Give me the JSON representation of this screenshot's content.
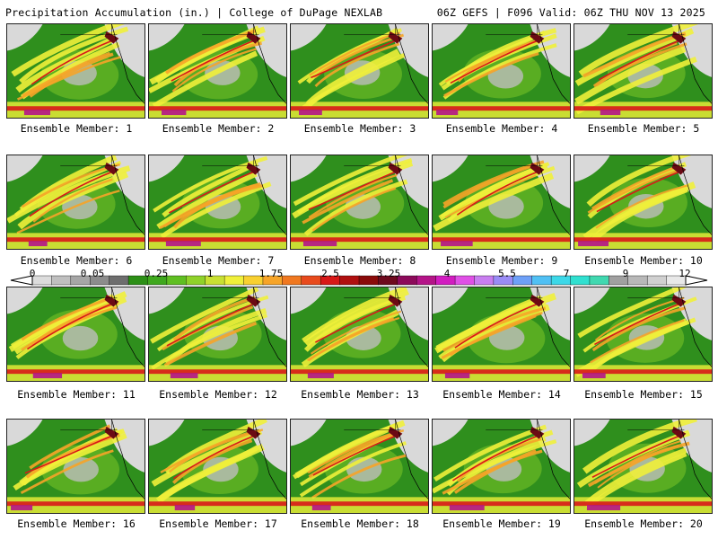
{
  "header": {
    "left_title": "Precipitation Accumulation (in.) | College of DuPage NEXLAB",
    "right_title": "06Z GEFS | F096 Valid: 06Z THU NOV 13 2025"
  },
  "panels": [
    {
      "label": "Ensemble Member: 1"
    },
    {
      "label": "Ensemble Member: 2"
    },
    {
      "label": "Ensemble Member: 3"
    },
    {
      "label": "Ensemble Member: 4"
    },
    {
      "label": "Ensemble Member: 5"
    },
    {
      "label": "Ensemble Member: 6"
    },
    {
      "label": "Ensemble Member: 7"
    },
    {
      "label": "Ensemble Member: 8"
    },
    {
      "label": "Ensemble Member: 9"
    },
    {
      "label": "Ensemble Member: 10"
    },
    {
      "label": "Ensemble Member: 11"
    },
    {
      "label": "Ensemble Member: 12"
    },
    {
      "label": "Ensemble Member: 13"
    },
    {
      "label": "Ensemble Member: 14"
    },
    {
      "label": "Ensemble Member: 15"
    },
    {
      "label": "Ensemble Member: 16"
    },
    {
      "label": "Ensemble Member: 17"
    },
    {
      "label": "Ensemble Member: 18"
    },
    {
      "label": "Ensemble Member: 19"
    },
    {
      "label": "Ensemble Member: 20"
    }
  ],
  "colorbar": {
    "tick_labels": [
      "0",
      "0.05",
      "0.25",
      "1",
      "1.75",
      "2.5",
      "3.25",
      "4",
      "5.5",
      "7",
      "9",
      "12"
    ],
    "colors": [
      "#dcdcdc",
      "#bfbfbf",
      "#a6a6a6",
      "#8c8c8c",
      "#6e6e6e",
      "#2c8f16",
      "#3fa81e",
      "#5fbf22",
      "#8fd22a",
      "#c8e032",
      "#f0f03a",
      "#f8d030",
      "#f6a428",
      "#f07820",
      "#e84a1c",
      "#d81818",
      "#b01010",
      "#8a0a0a",
      "#6e0a1e",
      "#8c0a5a",
      "#b41488",
      "#d21cc0",
      "#e050e6",
      "#c87ef0",
      "#9a8cf6",
      "#6ea0f8",
      "#50c0f4",
      "#3cd8e8",
      "#30e0d0",
      "#40d8b0",
      "#a0a0a0",
      "#b8b8b8",
      "#d0d0d0",
      "#e8e8e8"
    ],
    "map_colors": {
      "water": "#bdbdbd",
      "low": "#2f8f1d",
      "mid": "#8fd22a",
      "yellow": "#f0f03a",
      "orange": "#f6a428",
      "red": "#d81818",
      "purple": "#b41488",
      "gray_land": "#d9d9d9",
      "dark": "#6b0a14"
    }
  }
}
